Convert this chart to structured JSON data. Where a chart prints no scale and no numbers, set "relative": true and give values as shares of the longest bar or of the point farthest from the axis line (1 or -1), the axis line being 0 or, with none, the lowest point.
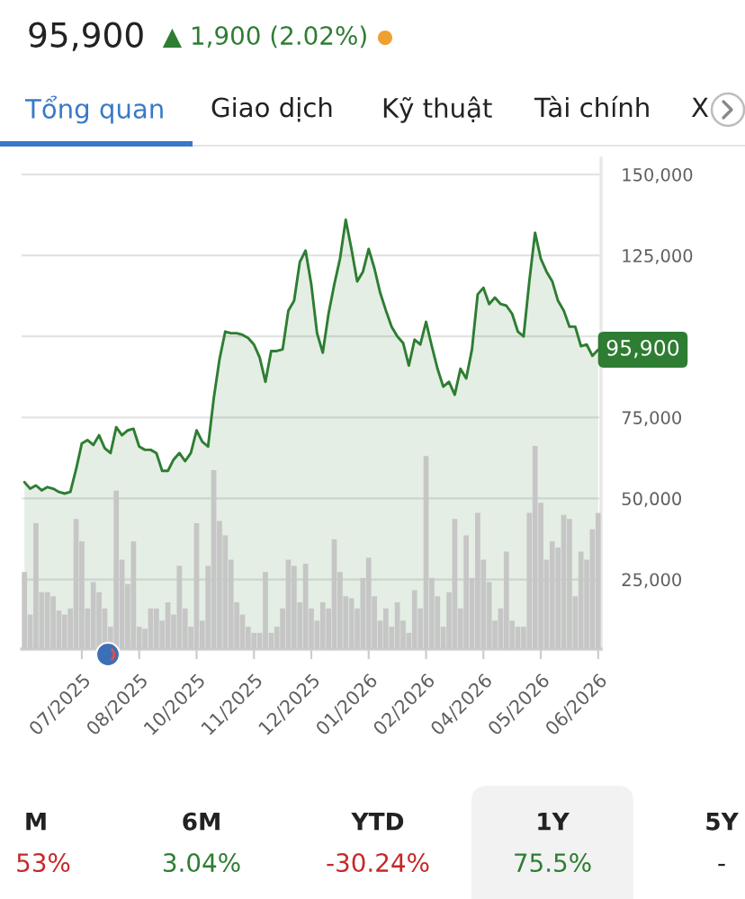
{
  "chart_data": [
    {
      "type": "area",
      "title": "95,900",
      "subtitle": "▲ 1,900 (2.02%)",
      "categories": [
        null,
        null,
        null,
        null,
        null,
        null,
        null,
        null,
        null,
        null,
        "07/2025",
        null,
        null,
        null,
        null,
        null,
        null,
        null,
        null,
        null,
        "08/2025",
        null,
        null,
        null,
        null,
        null,
        null,
        null,
        null,
        null,
        "10/2025",
        null,
        null,
        null,
        null,
        null,
        null,
        null,
        null,
        null,
        "11/2025",
        null,
        null,
        null,
        null,
        null,
        null,
        null,
        null,
        null,
        "12/2025",
        null,
        null,
        null,
        null,
        null,
        null,
        null,
        null,
        null,
        "01/2026",
        null,
        null,
        null,
        null,
        null,
        null,
        null,
        null,
        null,
        "02/2026",
        null,
        null,
        null,
        null,
        null,
        null,
        null,
        null,
        null,
        "04/2026",
        null,
        null,
        null,
        null,
        null,
        null,
        null,
        null,
        null,
        "05/2026",
        null,
        null,
        null,
        null,
        null,
        null,
        null,
        null,
        null,
        "06/2026"
      ],
      "series": [
        {
          "color": "#2e7d32",
          "values": [
            55000,
            53000,
            54000,
            52500,
            53500,
            53000,
            52000,
            51500,
            52000,
            59000,
            67000,
            68000,
            66500,
            69500,
            65500,
            64000,
            72000,
            69500,
            71000,
            71500,
            66000,
            65000,
            65000,
            64000,
            58500,
            58500,
            62000,
            64000,
            61500,
            64000,
            71000,
            67500,
            66000,
            81000,
            93000,
            101500,
            101000,
            101000,
            100500,
            99500,
            97500,
            93500,
            86000,
            95500,
            95500,
            96000,
            108000,
            111000,
            123000,
            126500,
            116000,
            101000,
            95000,
            107000,
            116000,
            124000,
            136000,
            127000,
            117000,
            120000,
            127000,
            121000,
            113500,
            108000,
            103000,
            100000,
            98000,
            91000,
            99000,
            97500,
            104500,
            97000,
            90000,
            84500,
            86000,
            82000,
            90000,
            87000,
            96000,
            113000,
            115000,
            110000,
            112000,
            110000,
            109500,
            107000,
            101500,
            100000,
            117000,
            132000,
            124000,
            120000,
            117000,
            111000,
            108000,
            103000,
            103000,
            97000,
            97500,
            94000,
            95900
          ],
          "value_labels": [
            null,
            null,
            null,
            null,
            null,
            null,
            null,
            null,
            null,
            null,
            null,
            null,
            null,
            null,
            null,
            null,
            null,
            null,
            null,
            null,
            null,
            null,
            null,
            null,
            null,
            null,
            null,
            null,
            null,
            null,
            null,
            null,
            null,
            null,
            null,
            null,
            null,
            null,
            null,
            null,
            null,
            null,
            null,
            null,
            null,
            null,
            null,
            null,
            null,
            null,
            null,
            null,
            null,
            null,
            null,
            null,
            null,
            null,
            null,
            null,
            null,
            null,
            null,
            null,
            null,
            null,
            null,
            null,
            null,
            null,
            null,
            null,
            null,
            null,
            null,
            null,
            null,
            null,
            null,
            null,
            null,
            null,
            null,
            null,
            null,
            null,
            null,
            null,
            null,
            null,
            null,
            null,
            null,
            null,
            null,
            null,
            null,
            null,
            null,
            null,
            "95,900"
          ]
        }
      ],
      "ylim": [
        3500,
        155000
      ],
      "yticks": [
        {
          "value": 25000,
          "label": "25,000"
        },
        {
          "value": 50000,
          "label": "50,000"
        },
        {
          "value": 75000,
          "label": "75,000"
        },
        {
          "value": 100000,
          "label": null
        },
        {
          "value": 125000,
          "label": "125,000"
        },
        {
          "value": 150000,
          "label": "150,000"
        }
      ],
      "grid": "y",
      "annotations": [
        "Tổng quan",
        "Giao dịch",
        "Kỹ thuật",
        "Tài chính",
        "X",
        "M",
        "53%",
        "6M",
        "3.04%",
        "YTD",
        "-30.24%",
        "1Y",
        "75.5%",
        "5Y",
        "-"
      ]
    },
    {
      "type": "bar",
      "relative": true,
      "tick_labels": false,
      "categories": [
        null,
        null,
        null,
        null,
        null,
        null,
        null,
        null,
        null,
        null,
        null,
        null,
        null,
        null,
        null,
        null,
        null,
        null,
        null,
        null,
        null,
        null,
        null,
        null,
        null,
        null,
        null,
        null,
        null,
        null,
        null,
        null,
        null,
        null,
        null,
        null,
        null,
        null,
        null,
        null,
        null,
        null,
        null,
        null,
        null,
        null,
        null,
        null,
        null,
        null,
        null,
        null,
        null,
        null,
        null,
        null,
        null,
        null,
        null,
        null,
        null,
        null,
        null,
        null,
        null,
        null,
        null,
        null,
        null,
        null,
        null,
        null,
        null,
        null,
        null,
        null,
        null,
        null,
        null,
        null,
        null,
        null,
        null,
        null,
        null,
        null,
        null,
        null,
        null,
        null,
        null,
        null,
        null,
        null,
        null,
        null,
        null,
        null,
        null,
        null,
        null
      ],
      "color": "#c6c6c6",
      "values": [
        0.38,
        0.17,
        0.62,
        0.28,
        0.28,
        0.26,
        0.19,
        0.17,
        0.2,
        0.64,
        0.53,
        0.2,
        0.33,
        0.28,
        0.2,
        0.11,
        0.78,
        0.44,
        0.32,
        0.53,
        0.11,
        0.1,
        0.2,
        0.2,
        0.14,
        0.23,
        0.17,
        0.41,
        0.2,
        0.11,
        0.62,
        0.14,
        0.41,
        0.88,
        0.63,
        0.56,
        0.44,
        0.23,
        0.17,
        0.11,
        0.08,
        0.08,
        0.38,
        0.08,
        0.11,
        0.2,
        0.44,
        0.41,
        0.23,
        0.42,
        0.2,
        0.14,
        0.23,
        0.2,
        0.54,
        0.38,
        0.26,
        0.25,
        0.2,
        0.35,
        0.45,
        0.26,
        0.14,
        0.2,
        0.11,
        0.23,
        0.14,
        0.08,
        0.29,
        0.2,
        0.95,
        0.35,
        0.26,
        0.11,
        0.28,
        0.64,
        0.2,
        0.56,
        0.35,
        0.67,
        0.44,
        0.33,
        0.14,
        0.2,
        0.48,
        0.14,
        0.11,
        0.11,
        0.67,
        1.0,
        0.72,
        0.44,
        0.53,
        0.5,
        0.66,
        0.64,
        0.26,
        0.48,
        0.44,
        0.59,
        0.67
      ]
    }
  ]
}
